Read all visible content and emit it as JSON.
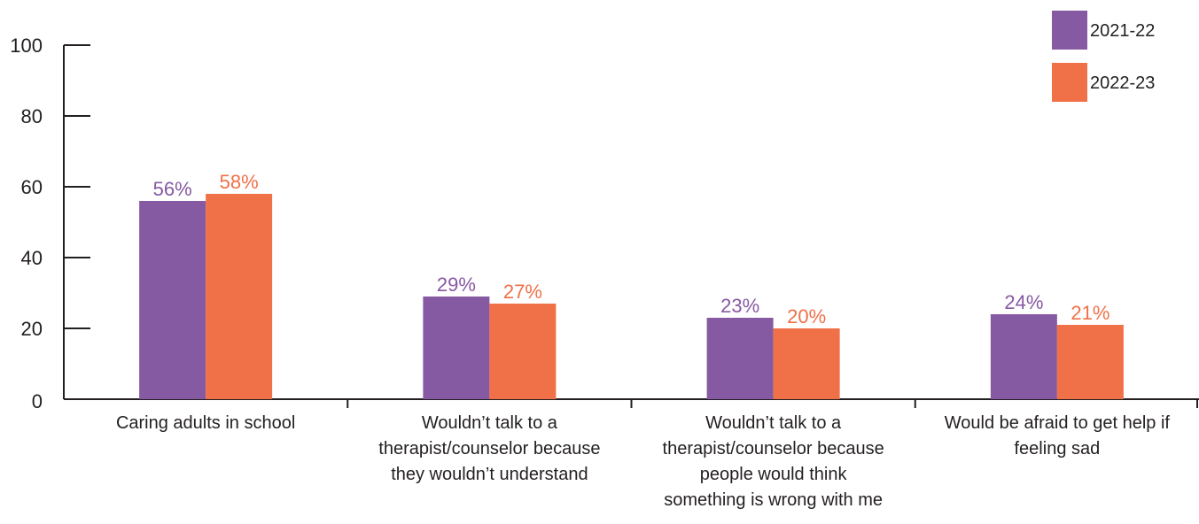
{
  "chart_data": {
    "type": "bar",
    "categories": [
      [
        "Caring adults in school"
      ],
      [
        "Wouldn’t talk to a",
        "therapist/counselor because",
        "they wouldn’t understand"
      ],
      [
        "Wouldn’t talk to a",
        "therapist/counselor because",
        "people would think",
        "something is wrong with me"
      ],
      [
        "Would be afraid to get help if",
        "feeling sad"
      ]
    ],
    "series": [
      {
        "name": "2021-22",
        "color": "#8659a3",
        "values": [
          56,
          29,
          23,
          24
        ],
        "labels": [
          "56%",
          "29%",
          "23%",
          "24%"
        ]
      },
      {
        "name": "2022-23",
        "color": "#f07048",
        "values": [
          58,
          27,
          20,
          21
        ],
        "labels": [
          "58%",
          "27%",
          "20%",
          "21%"
        ]
      }
    ],
    "yticks": [
      "0",
      "20",
      "40",
      "60",
      "80",
      "100"
    ],
    "ylim": [
      0,
      100
    ],
    "grid": false,
    "legend_position": "top-right"
  }
}
